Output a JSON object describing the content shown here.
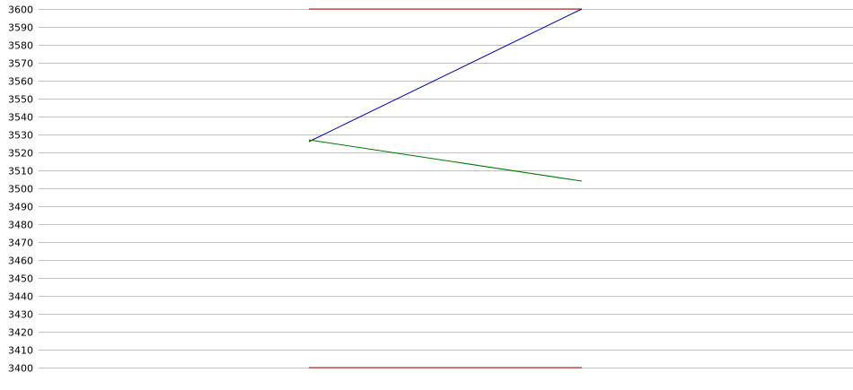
{
  "chart_data": {
    "type": "line",
    "title": "",
    "xlabel": "",
    "ylabel": "",
    "ylim": [
      3400,
      3600
    ],
    "grid": true,
    "y_ticks": [
      3600,
      3590,
      3580,
      3570,
      3560,
      3550,
      3540,
      3530,
      3520,
      3510,
      3500,
      3490,
      3480,
      3470,
      3460,
      3450,
      3440,
      3430,
      3420,
      3410,
      3400
    ],
    "x": [
      1,
      2
    ],
    "series": [
      {
        "color": "#cc0000",
        "values": [
          3600,
          3600
        ]
      },
      {
        "color": "#0000aa",
        "values": [
          3526,
          3600
        ]
      },
      {
        "color": "#007700",
        "values": [
          3527,
          3504
        ]
      },
      {
        "color": "#cc0000",
        "values": [
          3400,
          3400
        ]
      }
    ]
  }
}
